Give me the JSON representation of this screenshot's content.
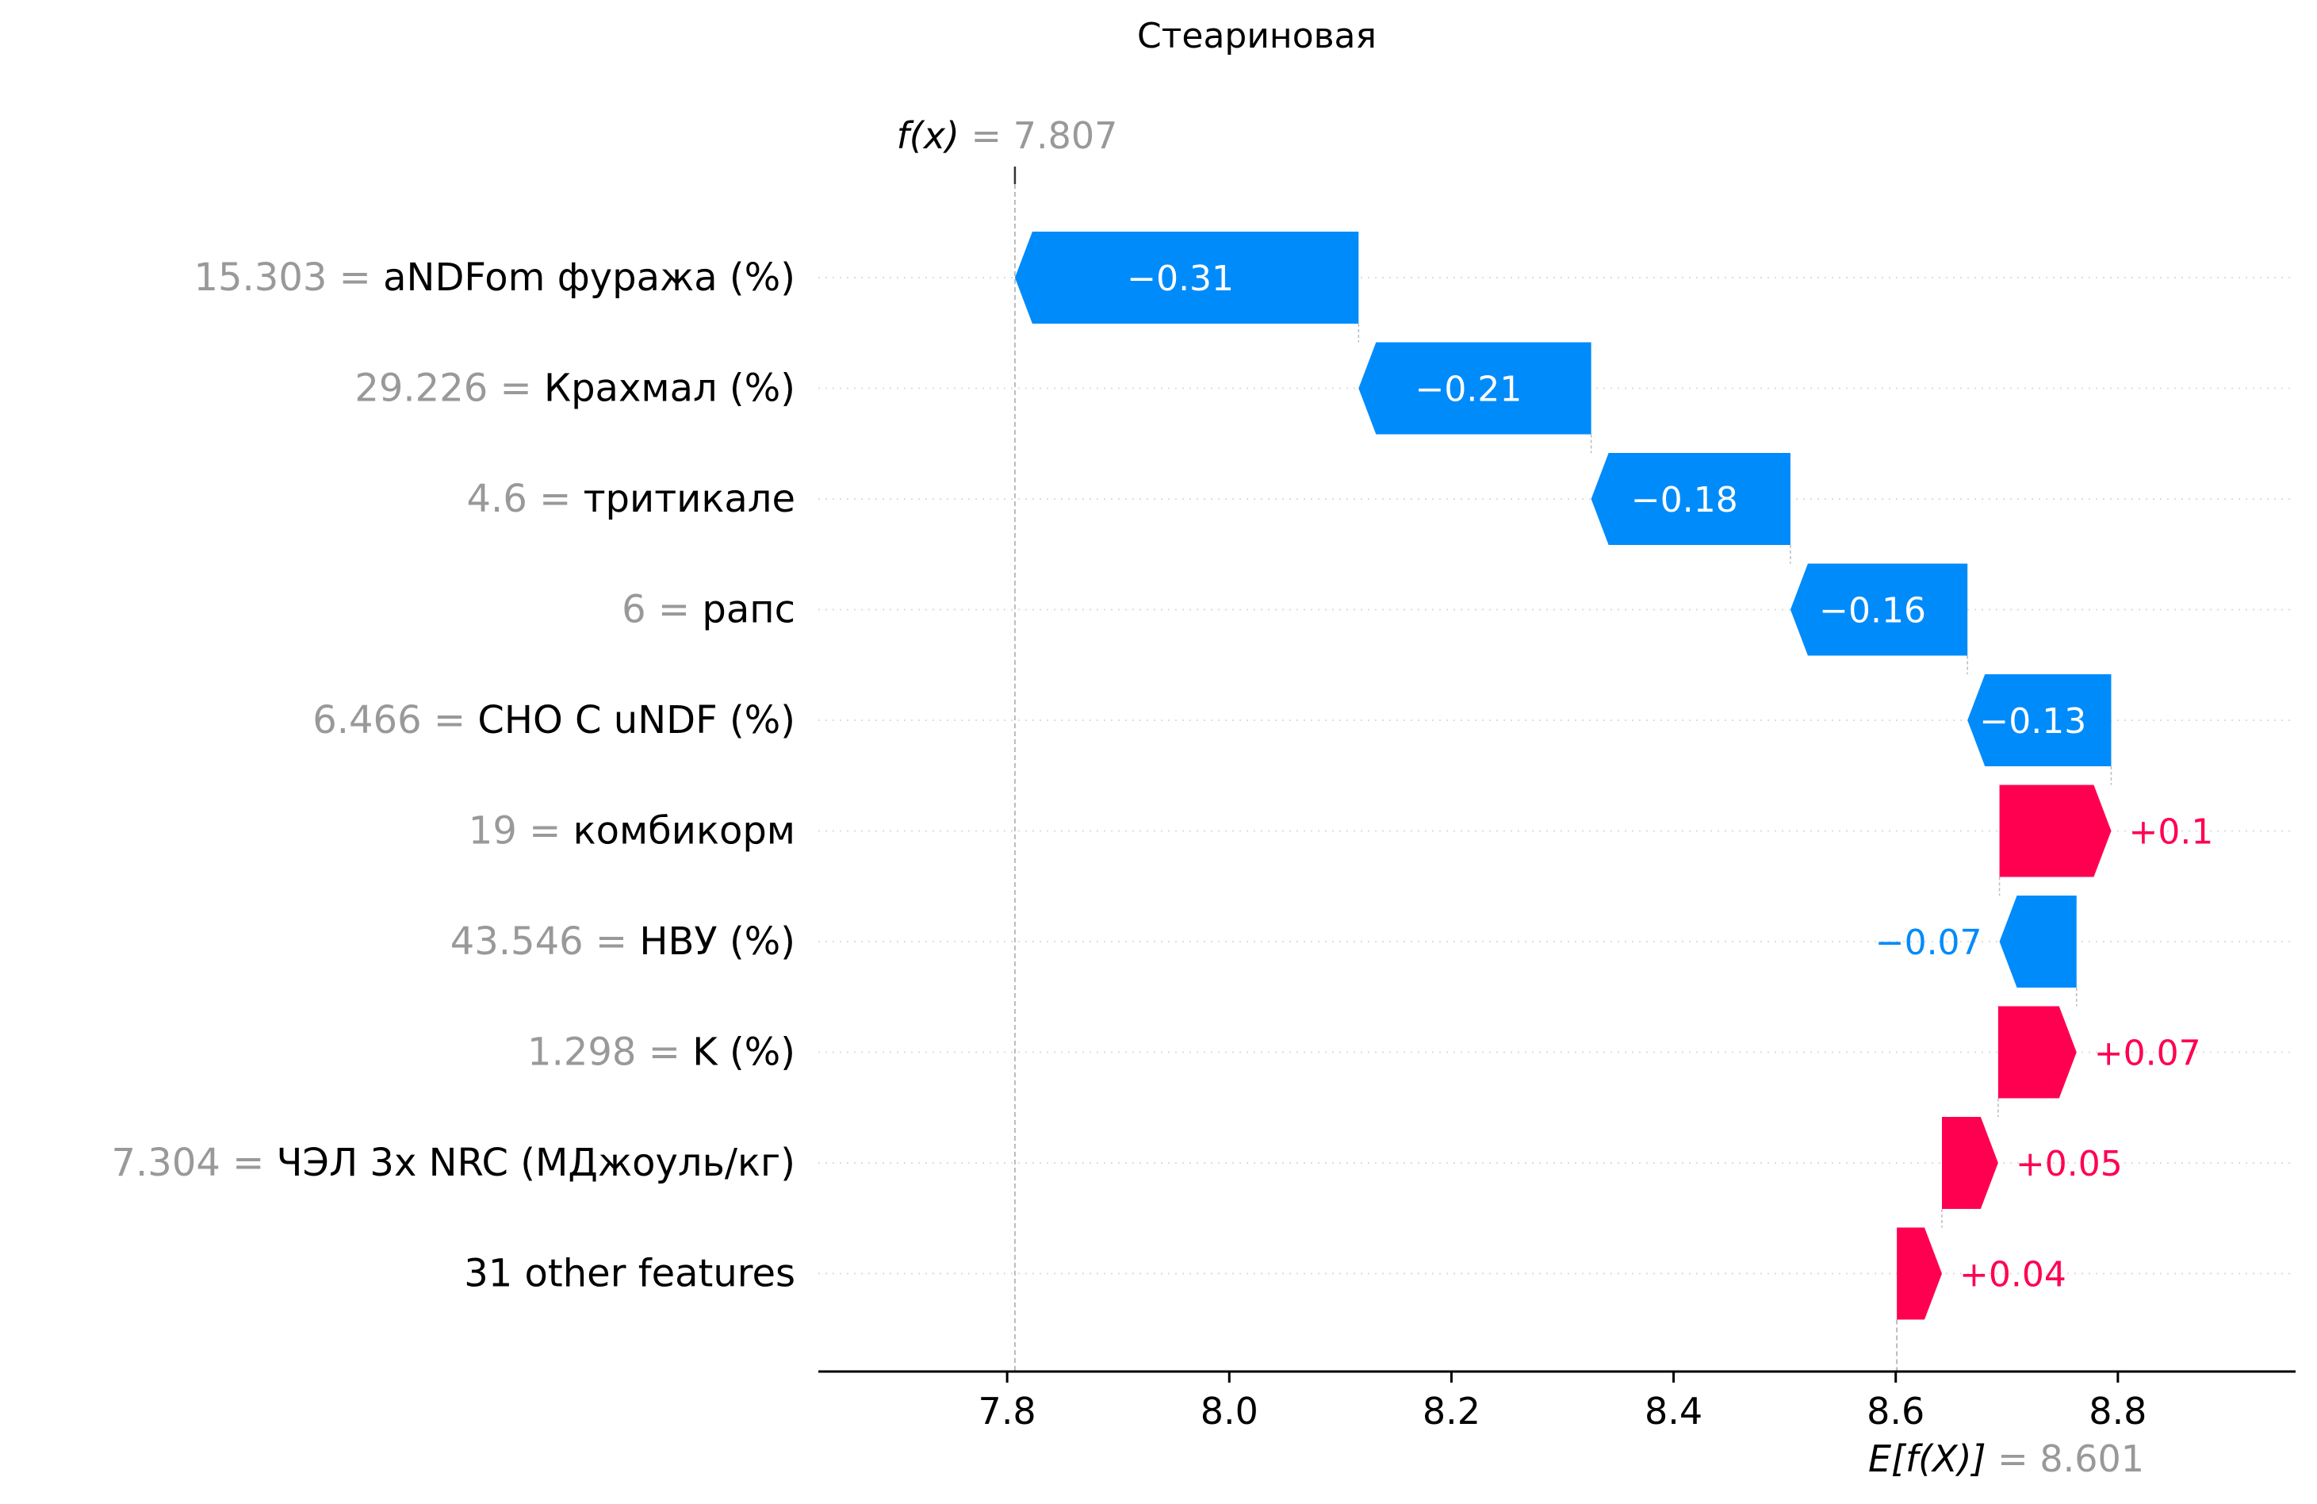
{
  "chart_data": {
    "type": "waterfall",
    "title": "Стеариновая",
    "fx": {
      "label_prefix": "f(x)",
      "value_text": "7.807",
      "value": 7.807
    },
    "base": {
      "label_prefix": "E[f(X)]",
      "value_text": "8.601",
      "value": 8.601
    },
    "xlim": [
      7.63,
      8.96
    ],
    "xticks": [
      7.8,
      8.0,
      8.2,
      8.4,
      8.6,
      8.8
    ],
    "xtick_labels": [
      "7.8",
      "8.0",
      "8.2",
      "8.4",
      "8.6",
      "8.8"
    ],
    "features": [
      {
        "value": "15.303",
        "name": "aNDFom фуража (%)",
        "shap": -0.31,
        "label": "−0.31"
      },
      {
        "value": "29.226",
        "name": "Крахмал (%)",
        "shap": -0.21,
        "label": "−0.21"
      },
      {
        "value": "4.6",
        "name": "тритикале",
        "shap": -0.18,
        "label": "−0.18"
      },
      {
        "value": "6",
        "name": "рапс",
        "shap": -0.16,
        "label": "−0.16"
      },
      {
        "value": "6.466",
        "name": "CHO C uNDF (%)",
        "shap": -0.13,
        "label": "−0.13"
      },
      {
        "value": "19",
        "name": "комбикорм",
        "shap": 0.1,
        "label": "+0.1"
      },
      {
        "value": "43.546",
        "name": "НВУ (%)",
        "shap": -0.07,
        "label": "−0.07"
      },
      {
        "value": "1.298",
        "name": "K (%)",
        "shap": 0.07,
        "label": "+0.07"
      },
      {
        "value": "7.304",
        "name": "ЧЭЛ 3х NRC (МДжоуль/кг)",
        "shap": 0.05,
        "label": "+0.05"
      },
      {
        "value": "",
        "name": "31 other features",
        "shap": 0.04,
        "label": "+0.04"
      }
    ],
    "colors": {
      "negative": "#008bfb",
      "positive": "#ff0051",
      "muted": "#999999",
      "text": "#000000"
    },
    "grid": "horizontal dotted"
  }
}
